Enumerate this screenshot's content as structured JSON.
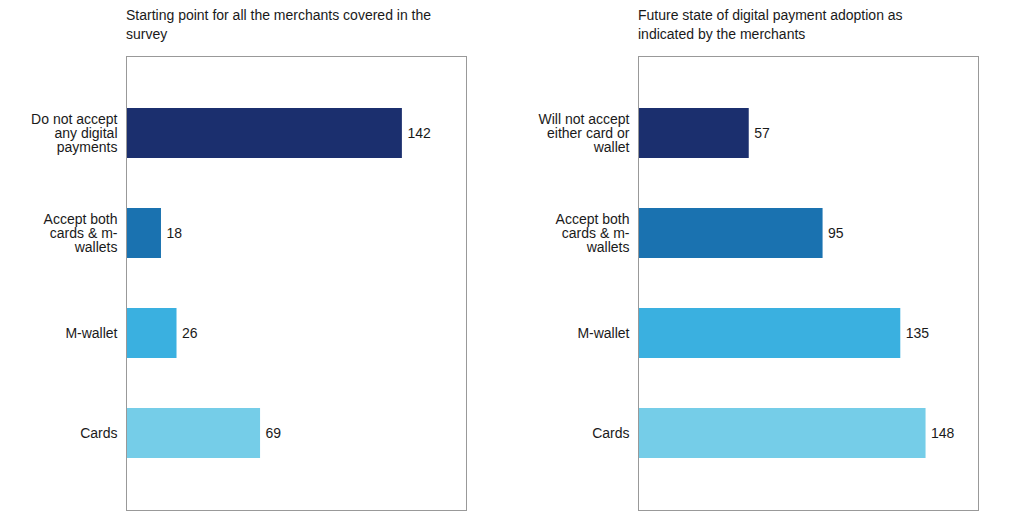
{
  "chart_data": [
    {
      "type": "bar",
      "orientation": "horizontal",
      "title": "Starting point for all the merchants covered in the\nsurvey",
      "categories": [
        "Do not accept\nany digital\npayments",
        "Accept both\ncards & m-\nwallets",
        "M-wallet",
        "Cards"
      ],
      "values": [
        142,
        18,
        26,
        69
      ],
      "colors": [
        "#1b2f6e",
        "#1a72b0",
        "#3ab0e0",
        "#75cde8"
      ],
      "xlim": [
        0,
        175
      ],
      "data_labels": true,
      "tick_labels": "y",
      "grid": false
    },
    {
      "type": "bar",
      "orientation": "horizontal",
      "title": "Future state of digital payment adoption as\nindicated by the merchants",
      "categories": [
        "Will not accept\neither card or\nwallet",
        "Accept both\ncards & m-\nwallets",
        "M-wallet",
        "Cards"
      ],
      "values": [
        57,
        95,
        135,
        148
      ],
      "colors": [
        "#1b2f6e",
        "#1a72b0",
        "#3ab0e0",
        "#75cde8"
      ],
      "xlim": [
        0,
        175
      ],
      "data_labels": true,
      "tick_labels": "y",
      "grid": false
    }
  ]
}
